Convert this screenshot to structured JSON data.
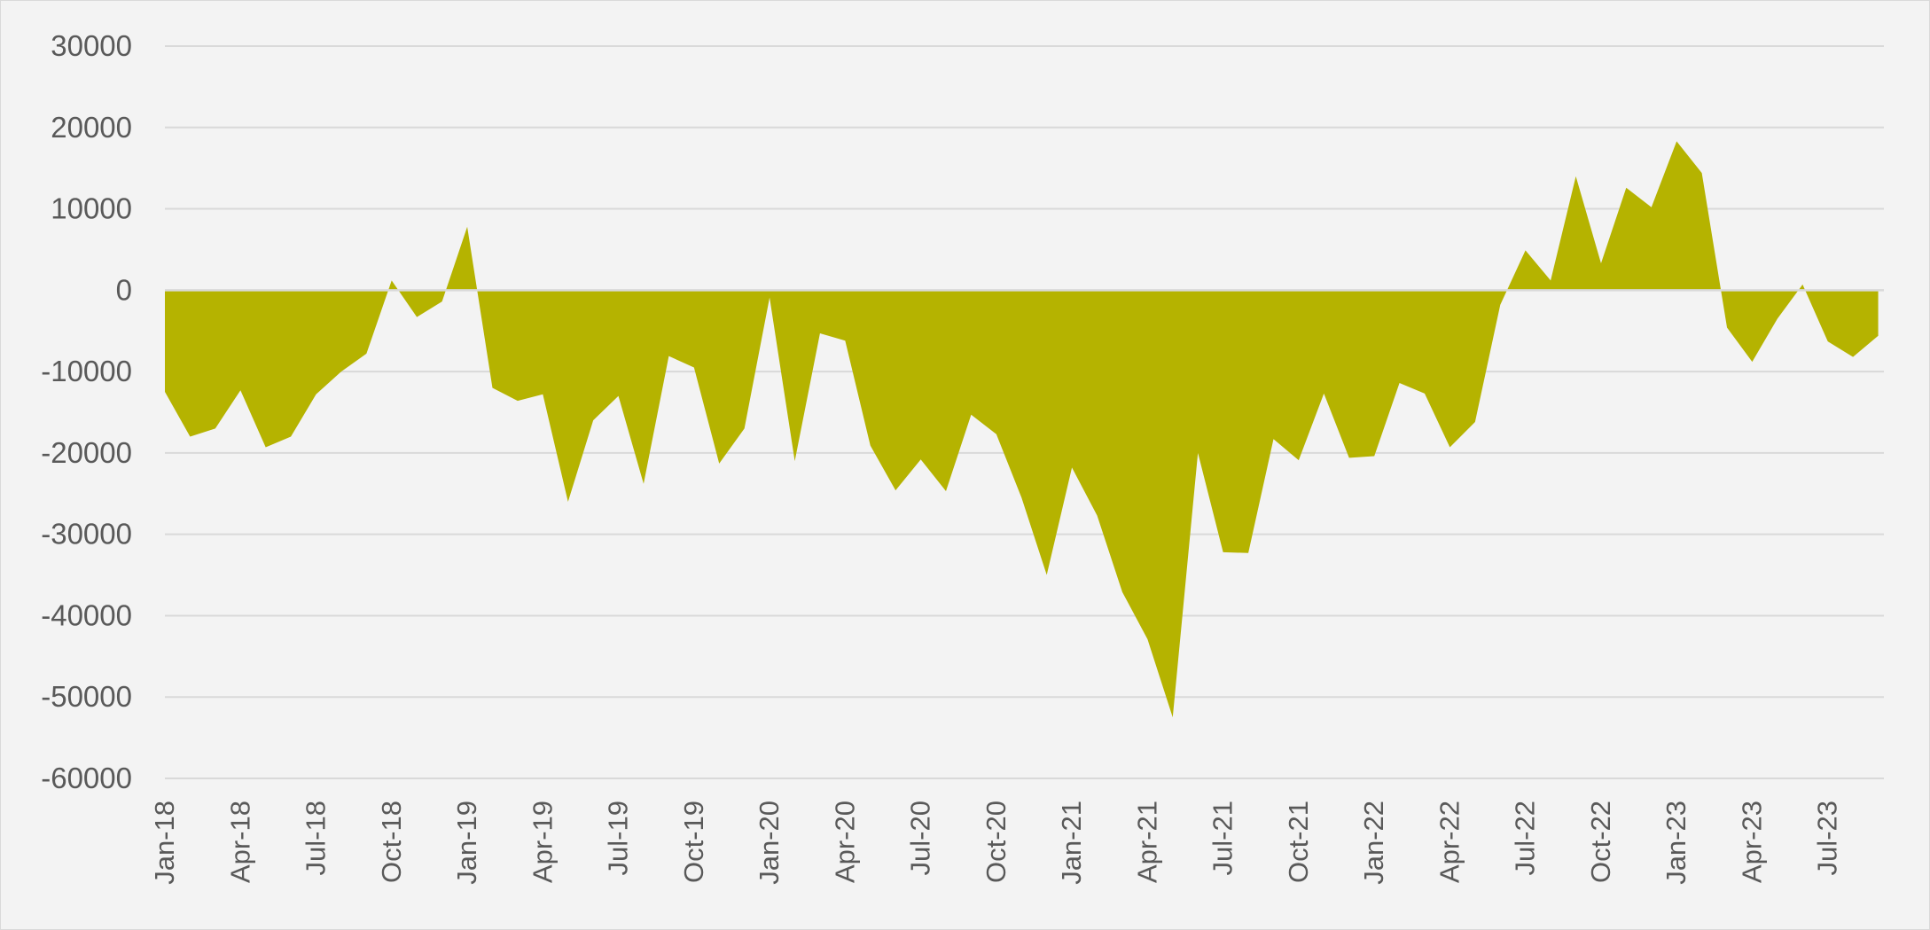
{
  "chart_data": {
    "type": "area",
    "title": "",
    "xlabel": "",
    "ylabel": "",
    "ylim": [
      -60000,
      30000
    ],
    "yticks": [
      "30000",
      "20000",
      "10000",
      "0",
      "-10000",
      "-20000",
      "-30000",
      "-40000",
      "-50000",
      "-60000"
    ],
    "grid": true,
    "legend": "none",
    "x_tick_labels": [
      "Jan-18",
      "Apr-18",
      "Jul-18",
      "Oct-18",
      "Jan-19",
      "Apr-19",
      "Jul-19",
      "Oct-19",
      "Jan-20",
      "Apr-20",
      "Jul-20",
      "Oct-20",
      "Jan-21",
      "Apr-21",
      "Jul-21",
      "Oct-21",
      "Jan-22",
      "Apr-22",
      "Jul-22",
      "Oct-22",
      "Jan-23",
      "Apr-23",
      "Jul-23"
    ],
    "x": [
      "Jan-18",
      "Feb-18",
      "Mar-18",
      "Apr-18",
      "May-18",
      "Jun-18",
      "Jul-18",
      "Aug-18",
      "Sep-18",
      "Oct-18",
      "Nov-18",
      "Dec-18",
      "Jan-19",
      "Feb-19",
      "Mar-19",
      "Apr-19",
      "May-19",
      "Jun-19",
      "Jul-19",
      "Aug-19",
      "Sep-19",
      "Oct-19",
      "Nov-19",
      "Dec-19",
      "Jan-20",
      "Feb-20",
      "Mar-20",
      "Apr-20",
      "May-20",
      "Jun-20",
      "Jul-20",
      "Aug-20",
      "Sep-20",
      "Oct-20",
      "Nov-20",
      "Dec-20",
      "Jan-21",
      "Feb-21",
      "Mar-21",
      "Apr-21",
      "May-21",
      "Jun-21",
      "Jul-21",
      "Aug-21",
      "Sep-21",
      "Oct-21",
      "Nov-21",
      "Dec-21",
      "Jan-22",
      "Feb-22",
      "Mar-22",
      "Apr-22",
      "May-22",
      "Jun-22",
      "Jul-22",
      "Aug-22",
      "Sep-22",
      "Oct-22",
      "Nov-22",
      "Dec-22",
      "Jan-23",
      "Feb-23",
      "Mar-23",
      "Apr-23",
      "May-23",
      "Jun-23",
      "Jul-23",
      "Aug-23",
      "Sep-23"
    ],
    "series": [
      {
        "values": [
          -12500,
          -18000,
          -17000,
          -12300,
          -19300,
          -18000,
          -12800,
          -10000,
          -7800,
          1200,
          -3300,
          -1400,
          7800,
          -12000,
          -13600,
          -12800,
          -26000,
          -16000,
          -13000,
          -23800,
          -8100,
          -9500,
          -21300,
          -17000,
          -900,
          -21000,
          -5300,
          -6200,
          -19100,
          -24600,
          -20800,
          -24700,
          -15300,
          -17700,
          -25500,
          -35000,
          -21800,
          -27700,
          -37100,
          -42900,
          -52500,
          -20000,
          -32200,
          -32300,
          -18300,
          -20900,
          -12700,
          -20600,
          -20400,
          -11400,
          -12700,
          -19300,
          -16200,
          -1800,
          4900,
          1200,
          14000,
          3300,
          12600,
          10200,
          18300,
          14400,
          -4600,
          -8800,
          -3500,
          700,
          -6300,
          -8200,
          -5600
        ]
      }
    ],
    "colors": {
      "area": "#b5b300",
      "grid": "#d9d9d9",
      "zero_line": "#d9d9d9",
      "text": "#595959",
      "background": "#f3f3f3"
    }
  }
}
